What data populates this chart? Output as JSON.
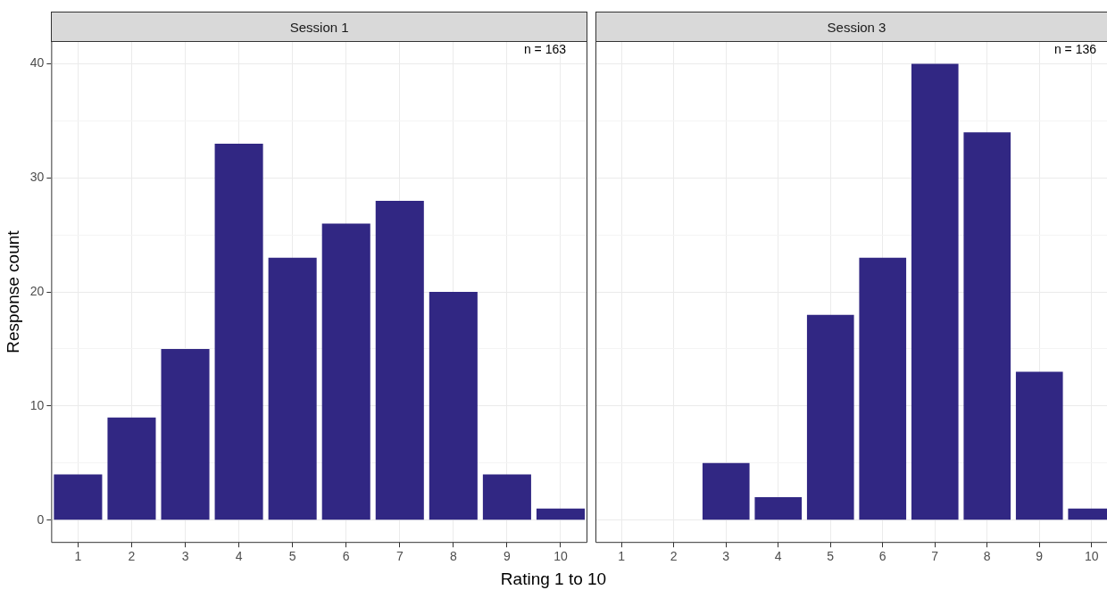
{
  "chart_data": [
    {
      "type": "bar",
      "title": "Session 1",
      "xlabel": "Rating 1 to 10",
      "ylabel": "Response count",
      "categories": [
        "1",
        "2",
        "3",
        "4",
        "5",
        "6",
        "7",
        "8",
        "9",
        "10"
      ],
      "series": [
        {
          "color": "#312783",
          "values": [
            4,
            9,
            15,
            33,
            23,
            26,
            28,
            20,
            4,
            1
          ]
        }
      ],
      "ylim": [
        -2,
        42
      ],
      "yticks": [
        0,
        {
          "value": 5,
          "label": null
        },
        10,
        {
          "value": 15,
          "label": null
        },
        20,
        {
          "value": 25,
          "label": null
        },
        30,
        {
          "value": 35,
          "label": null
        },
        40
      ],
      "grid": true,
      "annotations": [
        "n = 163"
      ]
    },
    {
      "type": "bar",
      "title": "Session 3",
      "categories": [
        "1",
        "2",
        "3",
        "4",
        "5",
        "6",
        "7",
        "8",
        "9",
        "10"
      ],
      "series": [
        {
          "color": "#312783",
          "values": [
            null,
            null,
            5,
            2,
            18,
            23,
            40,
            34,
            13,
            1
          ]
        }
      ],
      "ylim": [
        -2,
        42
      ],
      "yticks": [
        0,
        {
          "value": 5,
          "label": null
        },
        10,
        {
          "value": 15,
          "label": null
        },
        20,
        {
          "value": 25,
          "label": null
        },
        30,
        {
          "value": 35,
          "label": null
        },
        40
      ],
      "grid": true,
      "tick_labels": "x",
      "annotations": [
        "n = 136"
      ]
    }
  ]
}
